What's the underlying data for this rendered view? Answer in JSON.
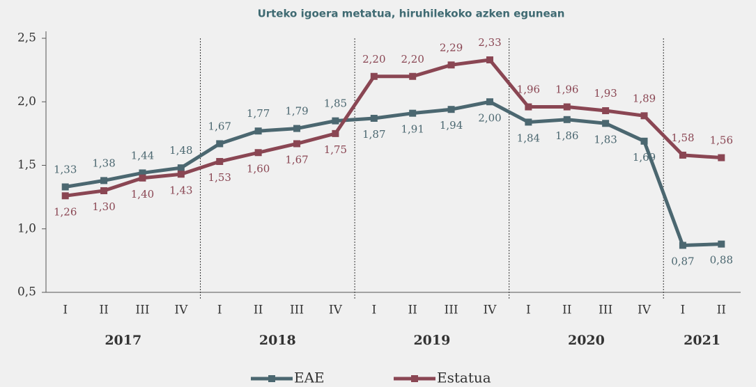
{
  "chart_data": {
    "type": "line",
    "title": "Urteko igoera metatua, hiruhilekoko azken egunean",
    "categories": [
      "I",
      "II",
      "III",
      "IV",
      "I",
      "II",
      "III",
      "IV",
      "I",
      "II",
      "III",
      "IV",
      "I",
      "II",
      "III",
      "IV",
      "I",
      "II"
    ],
    "years": [
      "2017",
      "2018",
      "2019",
      "2020",
      "2021"
    ],
    "series": [
      {
        "name": "EAE",
        "color": "#4b6770",
        "values": [
          1.33,
          1.38,
          1.44,
          1.48,
          1.67,
          1.77,
          1.79,
          1.85,
          1.87,
          1.91,
          1.94,
          2.0,
          1.84,
          1.86,
          1.83,
          1.69,
          0.87,
          0.88
        ],
        "value_labels": [
          "1,33",
          "1,38",
          "1,44",
          "1,48",
          "1,67",
          "1,77",
          "1,79",
          "1,85",
          "1,87",
          "1,91",
          "1,94",
          "2,00",
          "1,84",
          "1,86",
          "1,83",
          "1,69",
          "0,87",
          "0,88"
        ]
      },
      {
        "name": "Estatua",
        "color": "#8a4653",
        "values": [
          1.26,
          1.3,
          1.4,
          1.43,
          1.53,
          1.6,
          1.67,
          1.75,
          2.2,
          2.2,
          2.29,
          2.33,
          1.96,
          1.96,
          1.93,
          1.89,
          1.58,
          1.56
        ],
        "value_labels": [
          "1,26",
          "1,30",
          "1,40",
          "1,43",
          "1,53",
          "1,60",
          "1,67",
          "1,75",
          "2,20",
          "2,20",
          "2,29",
          "2,33",
          "1,96",
          "1,96",
          "1,93",
          "1,89",
          "1,58",
          "1,56"
        ]
      }
    ],
    "ylim": [
      0.5,
      2.5
    ],
    "yticks": [
      {
        "value": 0.5,
        "label": "0,5"
      },
      {
        "value": 1.0,
        "label": "1,0"
      },
      {
        "value": 1.5,
        "label": "1,5"
      },
      {
        "value": 2.0,
        "label": "2,0"
      },
      {
        "value": 2.5,
        "label": "2,5"
      }
    ],
    "legend": "bottom"
  }
}
